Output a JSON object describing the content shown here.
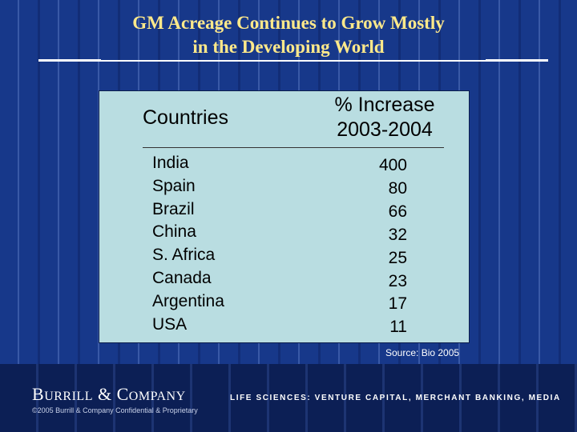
{
  "slide": {
    "title_line1": "GM Acreage Continues to Grow Mostly",
    "title_line2": "in the Developing World"
  },
  "table": {
    "header_countries": "Countries",
    "header_increase_line1": "% Increase",
    "header_increase_line2": "2003-2004",
    "rows": [
      {
        "country": "India",
        "value": "400"
      },
      {
        "country": "Spain",
        "value": "80"
      },
      {
        "country": "Brazil",
        "value": "66"
      },
      {
        "country": "China",
        "value": "32"
      },
      {
        "country": "S. Africa",
        "value": "25"
      },
      {
        "country": "Canada",
        "value": "23"
      },
      {
        "country": "Argentina",
        "value": "17"
      },
      {
        "country": "USA",
        "value": "11"
      }
    ]
  },
  "source": "Source: Bio 2005",
  "footer": {
    "brand_b": "B",
    "brand_urrill": "URRILL",
    "brand_amp": " & ",
    "brand_c": "C",
    "brand_ompany": "OMPANY",
    "tagline": "LIFE SCIENCES: VENTURE CAPITAL, MERCHANT BANKING, MEDIA",
    "copyright": "©2005 Burrill & Company Confidential & Proprietary"
  },
  "colors": {
    "background": "#17388a",
    "title": "#ffe98a",
    "panel": "#b9dde1",
    "footer": "#0c1f55"
  }
}
